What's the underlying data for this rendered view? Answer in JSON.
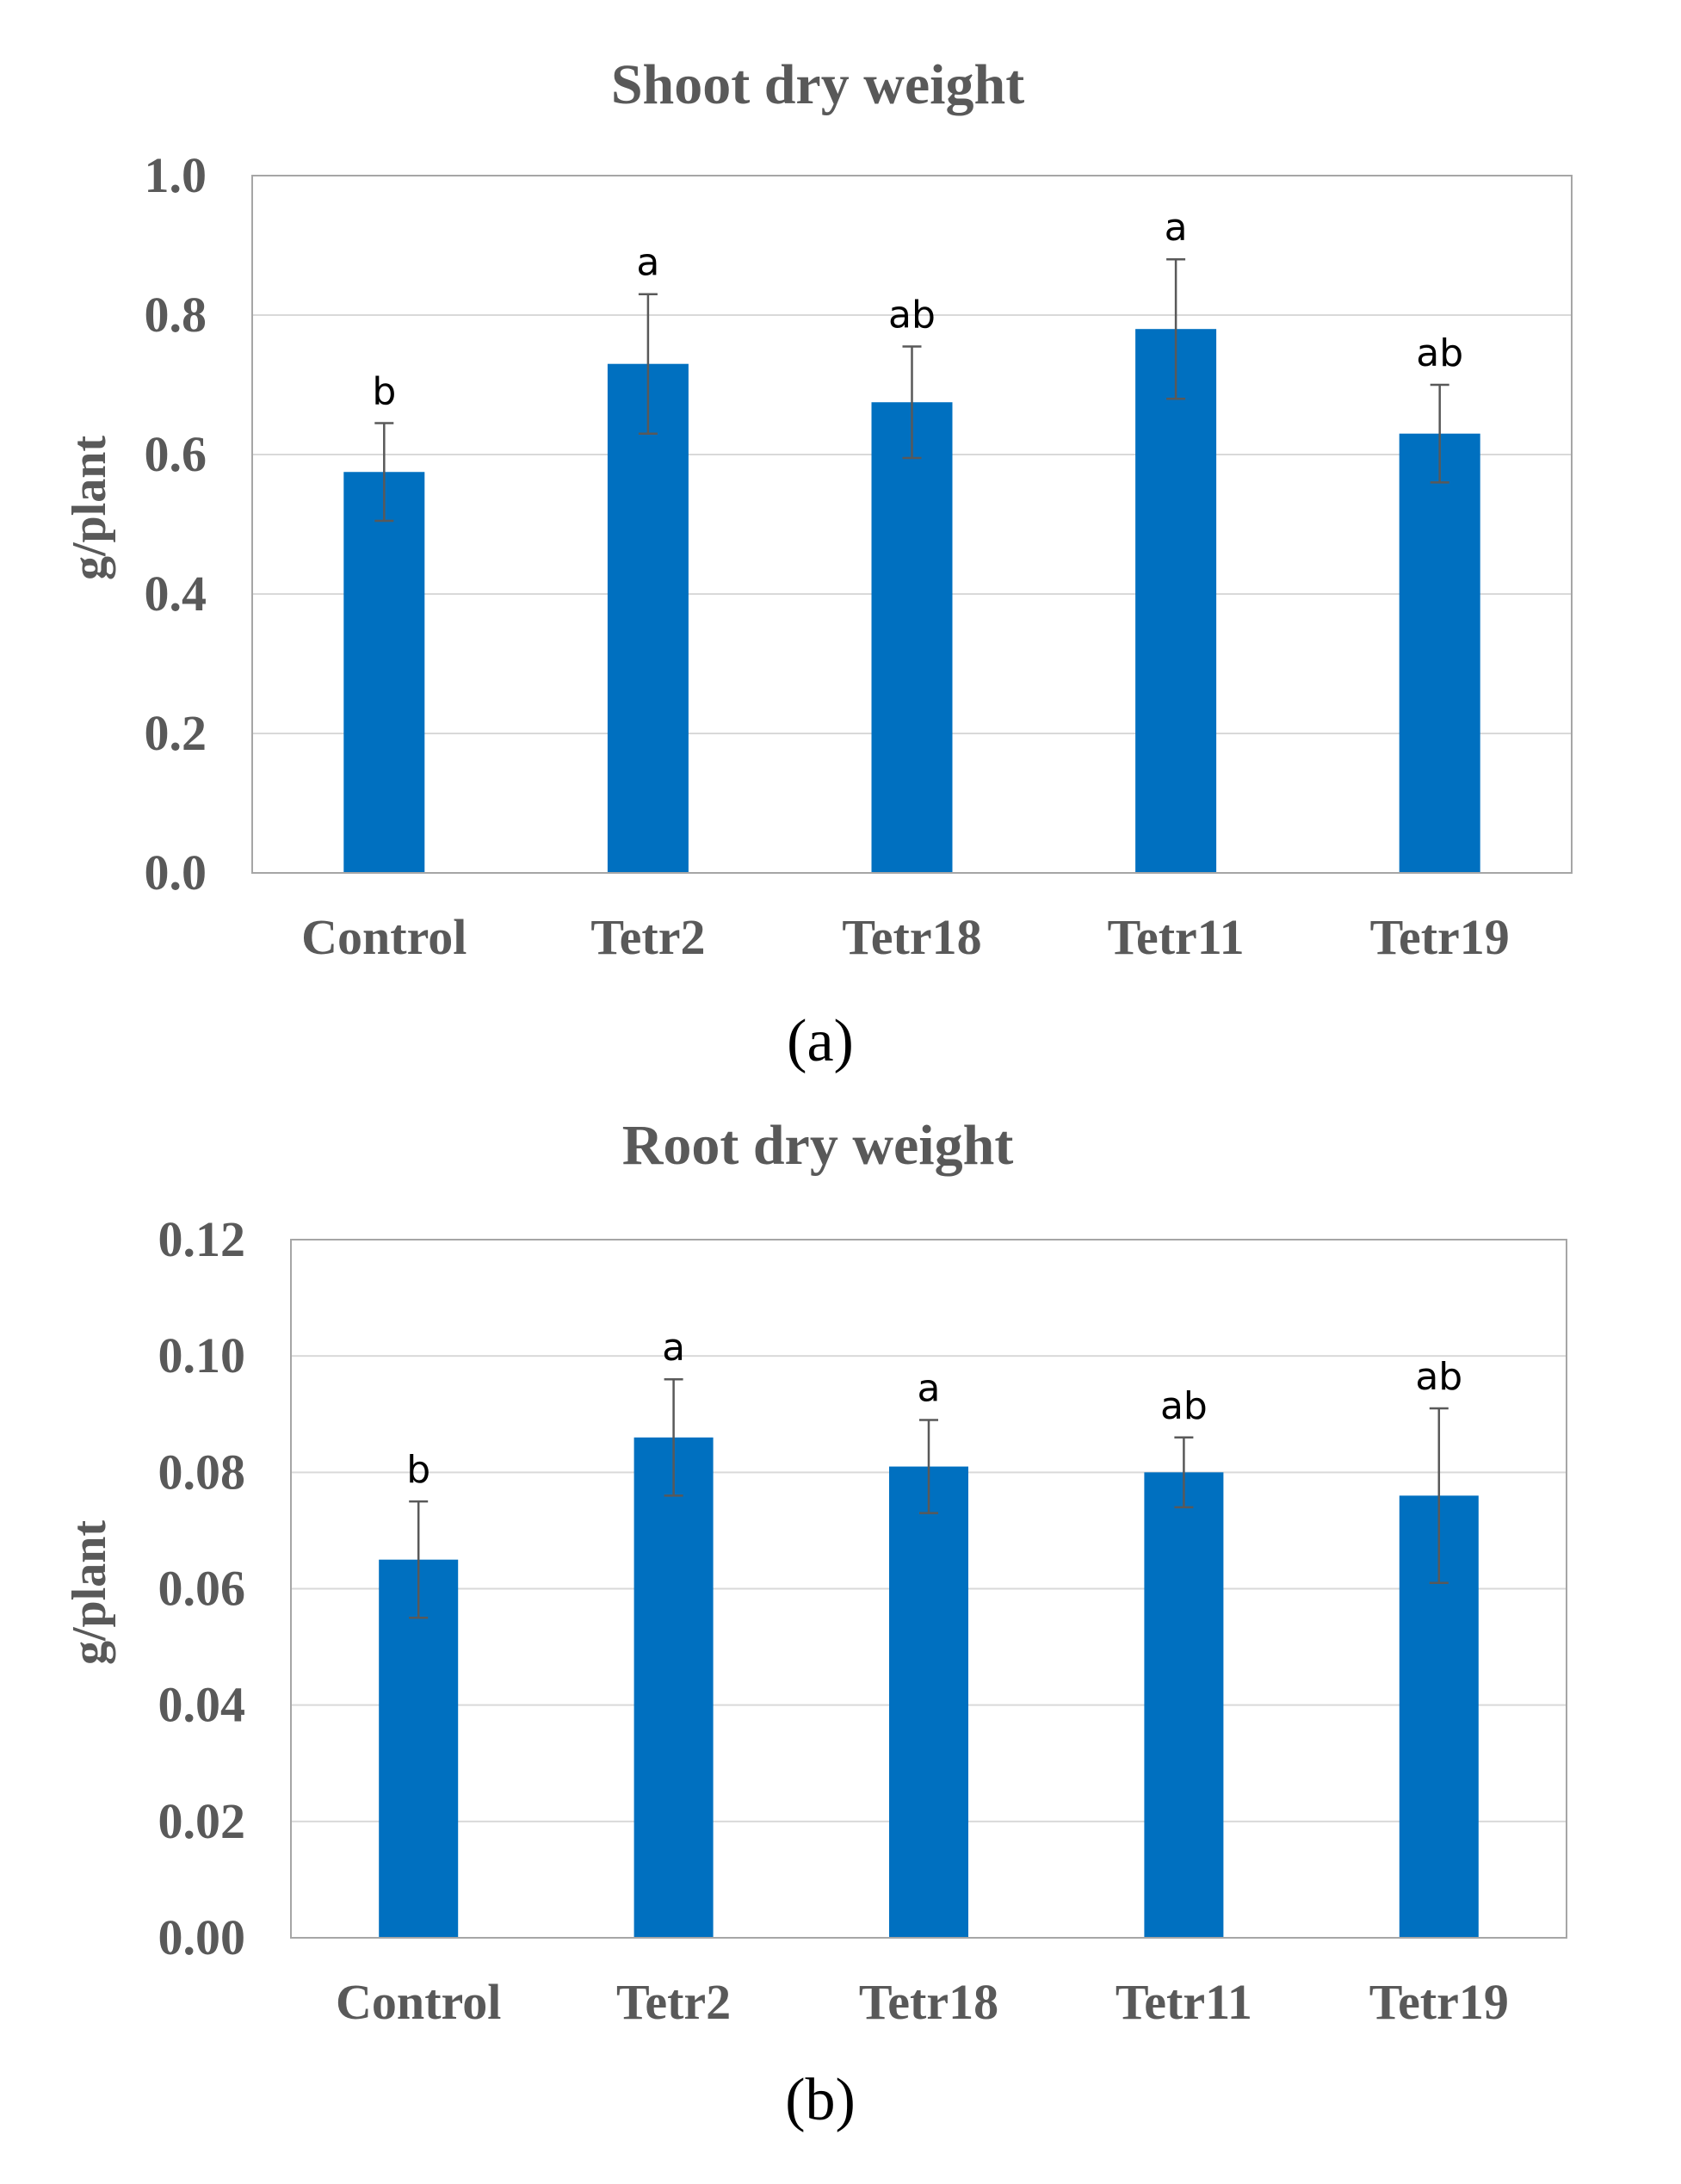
{
  "chart_data": [
    {
      "type": "bar",
      "title": "Shoot dry weight",
      "panel_label": "(a)",
      "xlabel": "",
      "ylabel": "g/plant",
      "ylim": [
        0,
        1.0
      ],
      "y_ticks": [
        "0.0",
        "0.2",
        "0.4",
        "0.6",
        "0.8",
        "1.0"
      ],
      "grid": true,
      "categories": [
        "Control",
        "Tetr2",
        "Tetr18",
        "Tetr11",
        "Tetr19"
      ],
      "values": [
        0.575,
        0.73,
        0.675,
        0.78,
        0.63
      ],
      "errors": [
        0.07,
        0.1,
        0.08,
        0.1,
        0.07
      ],
      "significance": [
        "b",
        "a",
        "ab",
        "a",
        "ab"
      ],
      "bar_color": "#0070C0"
    },
    {
      "type": "bar",
      "title": "Root dry weight",
      "panel_label": "(b)",
      "xlabel": "",
      "ylabel": "g/plant",
      "ylim": [
        0,
        0.12
      ],
      "y_ticks": [
        "0.00",
        "0.02",
        "0.04",
        "0.06",
        "0.08",
        "0.10",
        "0.12"
      ],
      "grid": true,
      "categories": [
        "Control",
        "Tetr2",
        "Tetr18",
        "Tetr11",
        "Tetr19"
      ],
      "values": [
        0.065,
        0.086,
        0.081,
        0.08,
        0.076
      ],
      "errors": [
        0.01,
        0.01,
        0.008,
        0.006,
        0.015
      ],
      "significance": [
        "b",
        "a",
        "a",
        "ab",
        "ab"
      ],
      "bar_color": "#0070C0"
    }
  ]
}
